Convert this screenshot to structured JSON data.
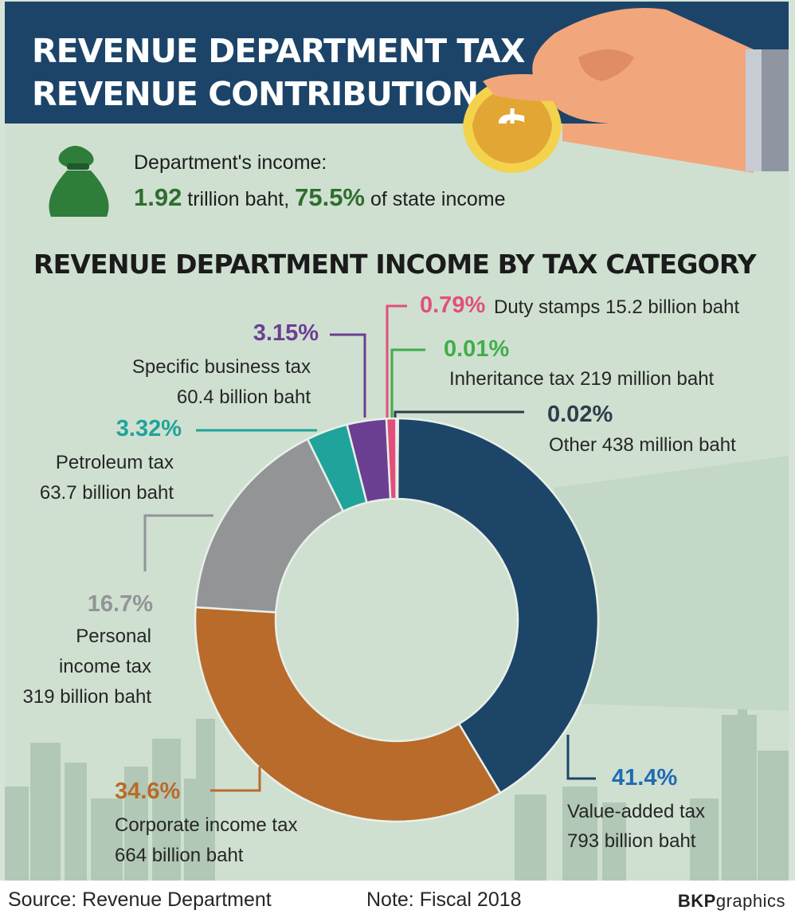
{
  "header": {
    "title_line1": "REVENUE DEPARTMENT TAX",
    "title_line2": "REVENUE CONTRIBUTION"
  },
  "income": {
    "label": "Department's income:",
    "amount": "1.92",
    "amount_unit": " trillion baht, ",
    "share": "75.5%",
    "share_suffix": " of state income"
  },
  "section_title": "REVENUE DEPARTMENT INCOME BY TAX CATEGORY",
  "chart_data": {
    "type": "pie",
    "donut": true,
    "title": "REVENUE DEPARTMENT INCOME BY TAX CATEGORY",
    "slices": [
      {
        "pct_label": "41.4%",
        "value": 41.4,
        "name": "Value-added tax",
        "amount": "793 billion baht",
        "color": "#1d4568"
      },
      {
        "pct_label": "34.6%",
        "value": 34.6,
        "name": "Corporate income tax",
        "amount": "664 billion baht",
        "color": "#b86b2a"
      },
      {
        "pct_label": "16.7%",
        "value": 16.7,
        "name": "Personal income tax",
        "amount": "319 billion baht",
        "color": "#929496"
      },
      {
        "pct_label": "3.32%",
        "value": 3.32,
        "name": "Petroleum tax",
        "amount": "63.7 billion baht",
        "color": "#1fa39a"
      },
      {
        "pct_label": "3.15%",
        "value": 3.15,
        "name": "Specific business tax",
        "amount": "60.4 billion baht",
        "color": "#6b3f92"
      },
      {
        "pct_label": "0.79%",
        "value": 0.79,
        "name": "Duty stamps",
        "amount": "15.2 billion baht",
        "color": "#e34f7a"
      },
      {
        "pct_label": "0.01%",
        "value": 0.01,
        "name": "Inheritance tax",
        "amount": "219 million baht",
        "color": "#3fae49"
      },
      {
        "pct_label": "0.02%",
        "value": 0.02,
        "name": "Other",
        "amount": "438 million baht",
        "color": "#2d3e4b"
      }
    ]
  },
  "labels": {
    "vat_pct": "41.4%",
    "vat_name": "Value-added tax",
    "vat_amt": "793 billion baht",
    "cit_pct": "34.6%",
    "cit_name": "Corporate income tax",
    "cit_amt": "664 billion baht",
    "pit_pct": "16.7%",
    "pit_name1": "Personal",
    "pit_name2": "income tax",
    "pit_amt": "319 billion baht",
    "pet_pct": "3.32%",
    "pet_name": "Petroleum tax",
    "pet_amt": "63.7 billion baht",
    "sbt_pct": "3.15%",
    "sbt_name": "Specific business tax",
    "sbt_amt": "60.4 billion baht",
    "duty_pct": "0.79%",
    "duty_text": "Duty stamps 15.2 billion baht",
    "inh_pct": "0.01%",
    "inh_text": "Inheritance tax 219 million baht",
    "oth_pct": "0.02%",
    "oth_text": "Other 438 million baht"
  },
  "footer": {
    "source": "Source: Revenue Department",
    "note": "Note: Fiscal 2018",
    "brand_bold": "BKP",
    "brand_rest": "graphics"
  },
  "colors": {
    "header_bg": "#1c4469",
    "background": "#cfe0d1",
    "accent_green": "#2e6e2f"
  },
  "icons": [
    "money-bag-icon",
    "hand-with-coin-icon",
    "dollar-coin-icon",
    "city-skyline-icon"
  ]
}
